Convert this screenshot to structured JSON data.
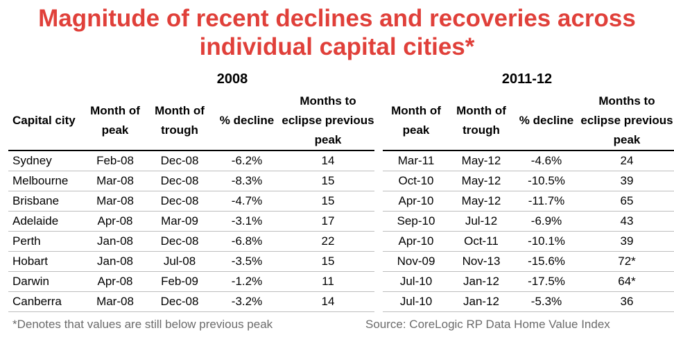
{
  "title": "Magnitude of recent declines and recoveries across individual capital cities*",
  "periods": [
    "2008",
    "2011-12"
  ],
  "headers": {
    "city": "Capital city",
    "peak": "Month of peak",
    "trough": "Month of trough",
    "decline": "% decline",
    "months": "Months to eclipse previous peak"
  },
  "rows": [
    {
      "city": "Sydney",
      "p1": {
        "peak": "Feb-08",
        "trough": "Dec-08",
        "decline": "-6.2%",
        "months": "14"
      },
      "p2": {
        "peak": "Mar-11",
        "trough": "May-12",
        "decline": "-4.6%",
        "months": "24"
      }
    },
    {
      "city": "Melbourne",
      "p1": {
        "peak": "Mar-08",
        "trough": "Dec-08",
        "decline": "-8.3%",
        "months": "15"
      },
      "p2": {
        "peak": "Oct-10",
        "trough": "May-12",
        "decline": "-10.5%",
        "months": "39"
      }
    },
    {
      "city": "Brisbane",
      "p1": {
        "peak": "Mar-08",
        "trough": "Dec-08",
        "decline": "-4.7%",
        "months": "15"
      },
      "p2": {
        "peak": "Apr-10",
        "trough": "May-12",
        "decline": "-11.7%",
        "months": "65"
      }
    },
    {
      "city": "Adelaide",
      "p1": {
        "peak": "Apr-08",
        "trough": "Mar-09",
        "decline": "-3.1%",
        "months": "17"
      },
      "p2": {
        "peak": "Sep-10",
        "trough": "Jul-12",
        "decline": "-6.9%",
        "months": "43"
      }
    },
    {
      "city": "Perth",
      "p1": {
        "peak": "Jan-08",
        "trough": "Dec-08",
        "decline": "-6.8%",
        "months": "22"
      },
      "p2": {
        "peak": "Apr-10",
        "trough": "Oct-11",
        "decline": "-10.1%",
        "months": "39"
      }
    },
    {
      "city": "Hobart",
      "p1": {
        "peak": "Jan-08",
        "trough": "Jul-08",
        "decline": "-3.5%",
        "months": "15"
      },
      "p2": {
        "peak": "Nov-09",
        "trough": "Nov-13",
        "decline": "-15.6%",
        "months": "72*"
      }
    },
    {
      "city": "Darwin",
      "p1": {
        "peak": "Apr-08",
        "trough": "Feb-09",
        "decline": "-1.2%",
        "months": "11"
      },
      "p2": {
        "peak": "Jul-10",
        "trough": "Jan-12",
        "decline": "-17.5%",
        "months": "64*"
      }
    },
    {
      "city": "Canberra",
      "p1": {
        "peak": "Mar-08",
        "trough": "Dec-08",
        "decline": "-3.2%",
        "months": "14"
      },
      "p2": {
        "peak": "Jul-10",
        "trough": "Jan-12",
        "decline": "-5.3%",
        "months": "36"
      }
    }
  ],
  "footnote": "*Denotes that values are still below previous peak",
  "source": "Source: CoreLogic RP Data Home Value Index",
  "colors": {
    "title": "#e0403a",
    "footer": "#6b6b6b"
  }
}
